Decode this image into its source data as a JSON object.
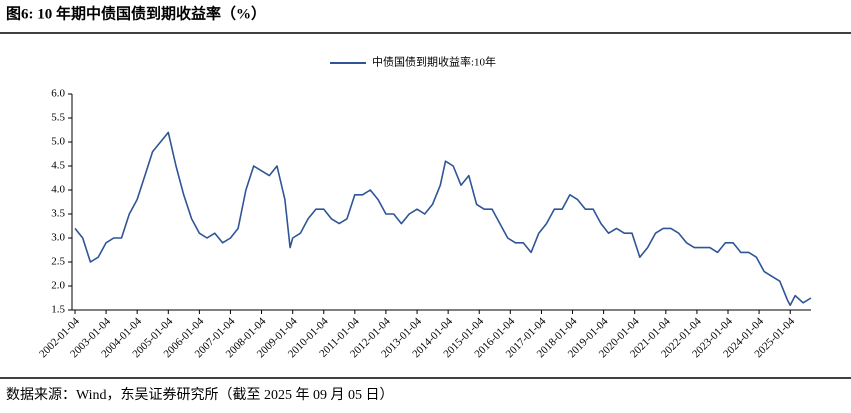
{
  "chart_data": {
    "type": "line",
    "title": "图6: 10 年期中债国债到期收益率（%）",
    "source": "数据来源：Wind，东吴证券研究所（截至 2025 年 09 月 05 日）",
    "x": [
      "2002-01-04",
      "2002-04-04",
      "2002-07-04",
      "2002-10-04",
      "2003-01-04",
      "2003-04-04",
      "2003-07-04",
      "2003-10-04",
      "2004-01-04",
      "2004-04-04",
      "2004-07-04",
      "2004-10-04",
      "2005-01-04",
      "2005-04-04",
      "2005-07-04",
      "2005-10-04",
      "2006-01-04",
      "2006-04-04",
      "2006-07-04",
      "2006-10-04",
      "2007-01-04",
      "2007-04-04",
      "2007-07-04",
      "2007-10-04",
      "2008-01-04",
      "2008-04-04",
      "2008-07-04",
      "2008-10-04",
      "2008-12-04",
      "2009-01-04",
      "2009-04-04",
      "2009-07-04",
      "2009-10-04",
      "2010-01-04",
      "2010-04-04",
      "2010-07-04",
      "2010-10-04",
      "2011-01-04",
      "2011-04-04",
      "2011-07-04",
      "2011-10-04",
      "2012-01-04",
      "2012-04-04",
      "2012-07-04",
      "2012-10-04",
      "2013-01-04",
      "2013-04-04",
      "2013-07-04",
      "2013-10-04",
      "2013-12-04",
      "2014-03-04",
      "2014-06-04",
      "2014-09-04",
      "2014-12-04",
      "2015-03-04",
      "2015-06-04",
      "2015-09-04",
      "2015-12-04",
      "2016-03-04",
      "2016-06-04",
      "2016-09-04",
      "2016-12-04",
      "2017-03-04",
      "2017-06-04",
      "2017-09-04",
      "2017-12-04",
      "2018-03-04",
      "2018-06-04",
      "2018-09-04",
      "2018-12-04",
      "2019-03-04",
      "2019-06-04",
      "2019-09-04",
      "2019-12-04",
      "2020-03-04",
      "2020-06-04",
      "2020-09-04",
      "2020-12-04",
      "2021-03-04",
      "2021-06-04",
      "2021-09-04",
      "2021-12-04",
      "2022-03-04",
      "2022-06-04",
      "2022-09-04",
      "2022-12-04",
      "2023-03-04",
      "2023-06-04",
      "2023-09-04",
      "2023-12-04",
      "2024-03-04",
      "2024-06-04",
      "2024-09-04",
      "2024-12-04",
      "2025-01-04",
      "2025-03-04",
      "2025-06-04",
      "2025-09-05"
    ],
    "series": [
      {
        "name": "中债国债到期收益率:10年",
        "color": "#2f5597",
        "values": [
          3.2,
          3.0,
          2.5,
          2.6,
          2.9,
          3.0,
          3.0,
          3.5,
          3.8,
          4.3,
          4.8,
          5.0,
          5.2,
          4.5,
          3.9,
          3.4,
          3.1,
          3.0,
          3.1,
          2.9,
          3.0,
          3.2,
          4.0,
          4.5,
          4.4,
          4.3,
          4.5,
          3.8,
          2.8,
          3.0,
          3.1,
          3.4,
          3.6,
          3.6,
          3.4,
          3.3,
          3.4,
          3.9,
          3.9,
          4.0,
          3.8,
          3.5,
          3.5,
          3.3,
          3.5,
          3.6,
          3.5,
          3.7,
          4.1,
          4.6,
          4.5,
          4.1,
          4.3,
          3.7,
          3.6,
          3.6,
          3.3,
          3.0,
          2.9,
          2.9,
          2.7,
          3.1,
          3.3,
          3.6,
          3.6,
          3.9,
          3.8,
          3.6,
          3.6,
          3.3,
          3.1,
          3.2,
          3.1,
          3.1,
          2.6,
          2.8,
          3.1,
          3.2,
          3.2,
          3.1,
          2.9,
          2.8,
          2.8,
          2.8,
          2.7,
          2.9,
          2.9,
          2.7,
          2.7,
          2.6,
          2.3,
          2.2,
          2.1,
          1.7,
          1.6,
          1.8,
          1.65,
          1.75
        ]
      }
    ],
    "xlim": [
      "2002-01-04",
      "2025-09-05"
    ],
    "xticks": [
      "2002-01-04",
      "2003-01-04",
      "2004-01-04",
      "2005-01-04",
      "2006-01-04",
      "2007-01-04",
      "2008-01-04",
      "2009-01-04",
      "2010-01-04",
      "2011-01-04",
      "2012-01-04",
      "2013-01-04",
      "2014-01-04",
      "2015-01-04",
      "2016-01-04",
      "2017-01-04",
      "2018-01-04",
      "2019-01-04",
      "2020-01-04",
      "2021-01-04",
      "2022-01-04",
      "2023-01-04",
      "2024-01-04",
      "2025-01-04"
    ],
    "ylim": [
      1.5,
      6.0
    ],
    "yticks": [
      1.5,
      {
        "value": 2,
        "label": "2.0"
      },
      2.5,
      {
        "value": 3,
        "label": "3.0"
      },
      3.5,
      {
        "value": 4,
        "label": "4.0"
      },
      4.5,
      {
        "value": 5,
        "label": "5.0"
      },
      5.5,
      {
        "value": 6,
        "label": "6.0"
      }
    ],
    "legend": "top"
  }
}
